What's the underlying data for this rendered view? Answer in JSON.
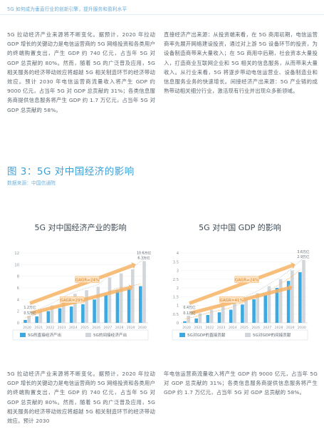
{
  "header": {
    "title": "5G 如何成为垂直行业的创新引擎，提升服务和盈利水平"
  },
  "body": {
    "left_paragraph": "5G 拉动经济产业来源将不断变化。据预计，2020 年拉动 GDP 增长的关键动力是电信运营商的 5G 网络投资和各类用户的终端购置支出，产生 GDP 约 740 亿元，占当年 5G 对 GDP 总贡献的 80%。然而，随着 5G 的广泛普及应用，5G 相关服务的经济带动效应将超越 5G 相关制造环节的经济带动效应。预计 2030 年电信运营商流量收入将产生 GDP 约 9000 亿元，占当年 5G 对 GDP 总贡献的 31%；各类信息服务商提供信息服务将产生 GDP 约 1.7 万亿元，占当年 5G 对 GDP 总贡献的 58%。",
    "right_paragraph": "直接经济产出来源：从投资端来看，在 5G 商用初期，电信运营商率先展开网络建设投资，通过对上游 5G 设备环节的投资，为设备制造商带来大量收入；在 5G 商用中后期，社会资本大量投入，打造商业互联网企业和 5G 相关的信息服务，从而带来大量收入。从行业来看，5G 将逐步带动电信运营业、设备制造业和信息服务业务的快速增长。间接经济产出来源：5G 产业链的成熟带动相关细分行业，激活现有行业并出现众多新领域。"
  },
  "figure": {
    "title": "图 3：5G 对中国经济的影响",
    "source": "数据来源：中国信通院"
  },
  "chart_data": [
    {
      "type": "bar",
      "title": "5G 对中国经济产业的影响",
      "categories": [
        "2020",
        "2021",
        "2022",
        "2023",
        "2024",
        "2025",
        "2026",
        "2027",
        "2028",
        "2029",
        "2030"
      ],
      "ylim": [
        0,
        12
      ],
      "yticks": [
        0,
        2,
        4,
        6,
        8,
        10,
        12
      ],
      "series": [
        {
          "name": "5G的直接经济产出",
          "color": "#3ea9e0",
          "values": [
            0.5,
            1.1,
            2.0,
            2.5,
            2.8,
            3.2,
            4.0,
            4.8,
            5.6,
            5.9,
            6.3
          ]
        },
        {
          "name": "5G的间接经济产出",
          "color": "#d2d6da",
          "values": [
            1.2,
            2.1,
            3.0,
            4.1,
            5.0,
            5.6,
            6.2,
            7.8,
            8.5,
            9.2,
            10.6
          ]
        }
      ],
      "annotations": {
        "start_labels": [
          "1.2万亿",
          "0.5万亿"
        ],
        "end_labels": [
          "10.6万亿",
          "6.3万亿"
        ],
        "cagr_gray": "GAGR=24%",
        "cagr_blue": "GAGR=29%"
      }
    },
    {
      "type": "bar",
      "title": "5G 对中国 GDP 的影响",
      "categories": [
        "2020",
        "2021",
        "2022",
        "2023",
        "2024",
        "2025",
        "2026",
        "2027",
        "2028",
        "2029",
        "2030"
      ],
      "ylim": [
        0,
        4
      ],
      "yticks": [
        0,
        0.5,
        1,
        1.5,
        2,
        2.5,
        3,
        3.5,
        4
      ],
      "series": [
        {
          "name": "5G对GDP的直接贡献",
          "color": "#3ea9e0",
          "values": [
            0.09,
            0.25,
            0.45,
            0.6,
            0.75,
            1.05,
            1.35,
            1.6,
            2.0,
            2.4,
            2.9
          ]
        },
        {
          "name": "5G对GDP的间接贡献",
          "color": "#d2d6da",
          "values": [
            0.41,
            0.55,
            0.75,
            0.95,
            1.15,
            1.4,
            1.7,
            2.1,
            2.5,
            3.0,
            3.6
          ]
        }
      ],
      "annotations": {
        "start_labels": [
          "0.4万亿",
          "0.1万亿"
        ],
        "end_labels": [
          "3.6万亿",
          "2.9万亿"
        ],
        "cagr_gray": "GAGR=24%",
        "cagr_blue": "GAGR=41%"
      }
    }
  ],
  "footer": {
    "left_paragraph": "5G 拉动经济产业来源将不断变化。据预计，2020 年拉动 GDP 增长的关键动力是电信运营商的 5G 网络投资和各类用户的终端购置支出，产生 GDP 约 740 亿元，占当年 5G 对 GDP 总贡献的 80%。然而，随着 5G 的广泛普及应用，5G 相关服务的经济带动效应将超越 5G 相关制造环节的经济带动效应。预计 2030",
    "right_paragraph": "年电信运营商流量收入将产生 GDP 约 9000 亿元，占当年 5G 对 GDP 总贡献的 31%；各类信息服务商提供信息服务将产生 GDP 约 1.7 万亿元，占当年 5G 对 GDP 总贡献的 58%。"
  }
}
